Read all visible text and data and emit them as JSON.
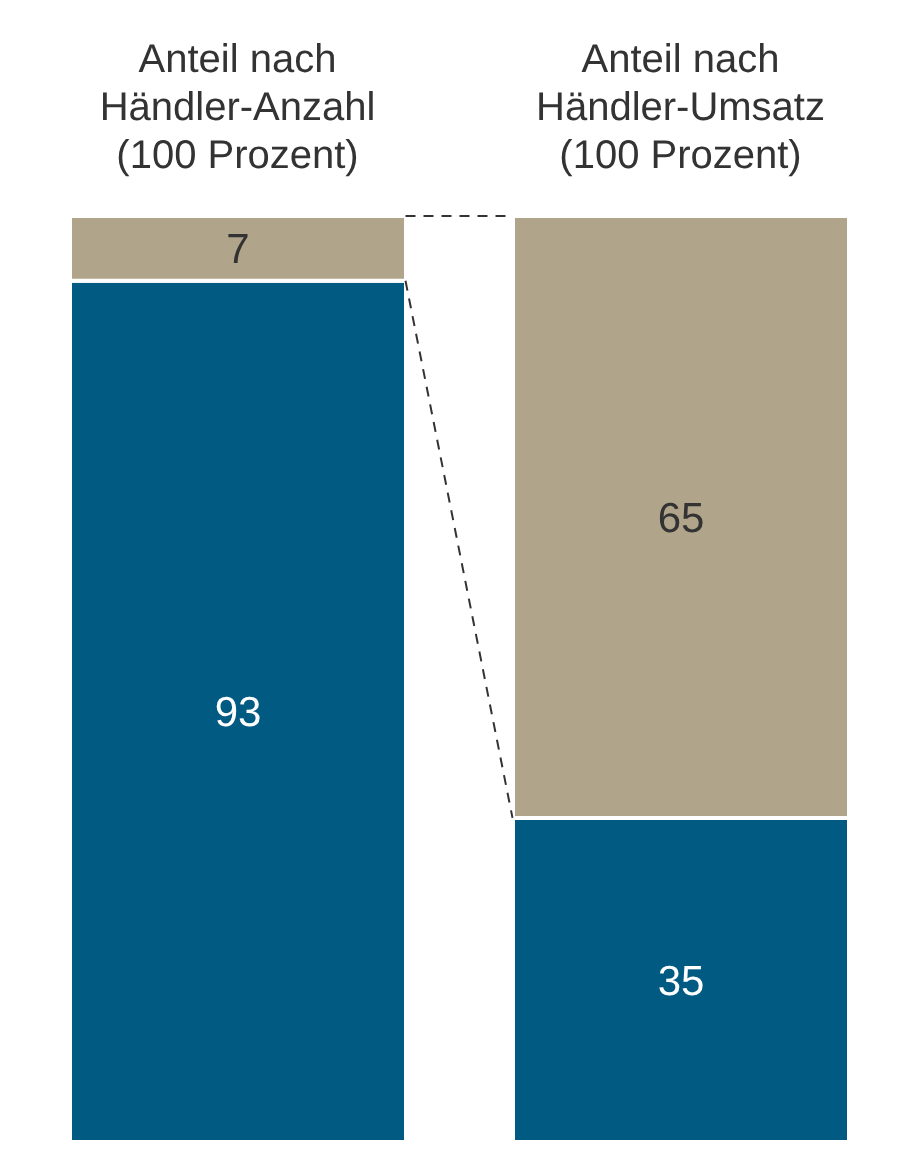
{
  "chart_data": {
    "type": "bar",
    "stacked": true,
    "data_labels": true,
    "categories": [
      "Anteil nach Händler-Anzahl (100 Prozent)",
      "Anteil nach Händler-Umsatz (100 Prozent)"
    ],
    "series": [
      {
        "color": "#005a82",
        "values": [
          93,
          35
        ]
      },
      {
        "color": "#b0a48a",
        "values": [
          7,
          65
        ]
      }
    ]
  }
}
